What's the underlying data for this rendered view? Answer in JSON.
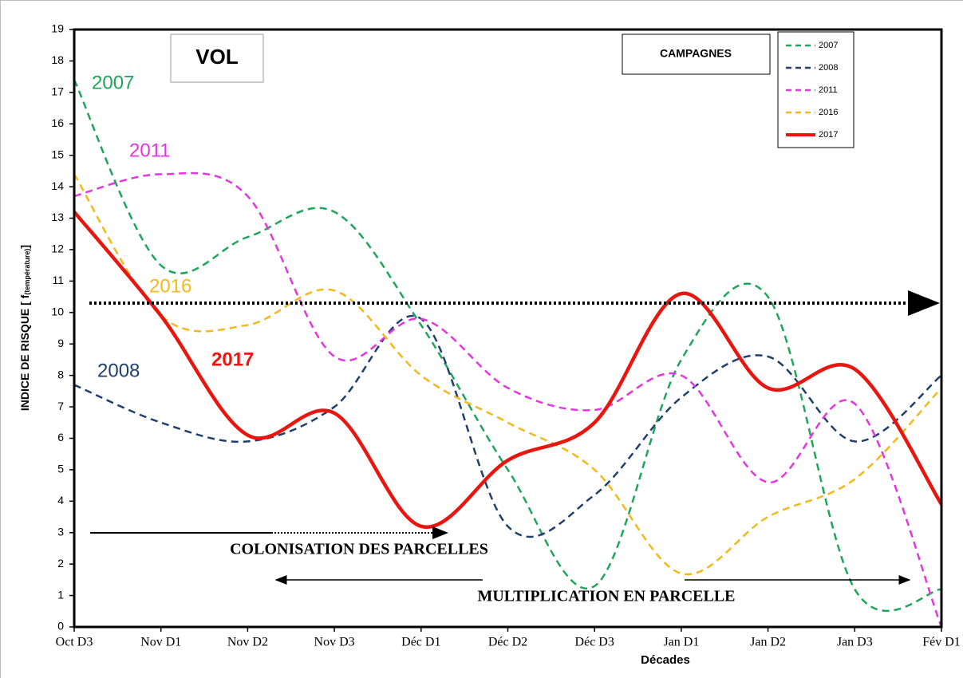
{
  "chart_data": {
    "type": "line",
    "xlabel": "Décades",
    "ylabel": [
      "INDICE DE RISQUE [ f",
      "(température)",
      "]"
    ],
    "categories": [
      "Oct D3",
      "Nov D1",
      "Nov D2",
      "Nov D3",
      "Déc D1",
      "Déc D2",
      "Déc D3",
      "Jan D1",
      "Jan D2",
      "Jan D3",
      "Fév D1"
    ],
    "ylim": [
      0,
      19
    ],
    "yticks": [
      0,
      1,
      2,
      3,
      4,
      5,
      6,
      7,
      8,
      9,
      10,
      11,
      12,
      13,
      14,
      15,
      16,
      17,
      18,
      19
    ],
    "legend_title": "CAMPAGNES",
    "legend": "upper right",
    "series": [
      {
        "name": "2007",
        "color": "#1fa55a",
        "dashed": true,
        "values": [
          17.4,
          11.5,
          12.4,
          13.2,
          9.6,
          5.0,
          1.3,
          8.5,
          10.5,
          1.2,
          1.2
        ]
      },
      {
        "name": "2008",
        "color": "#1f3f6e",
        "dashed": true,
        "values": [
          7.7,
          6.5,
          5.9,
          7.0,
          9.8,
          3.2,
          4.2,
          7.3,
          8.6,
          5.9,
          8.0
        ]
      },
      {
        "name": "2011",
        "color": "#e535e0",
        "dashed": true,
        "values": [
          13.7,
          14.4,
          13.7,
          8.6,
          9.8,
          7.6,
          6.9,
          8.0,
          4.6,
          7.1,
          0
        ]
      },
      {
        "name": "2016",
        "color": "#f2b81c",
        "dashed": true,
        "values": [
          14.4,
          9.9,
          9.6,
          10.7,
          8.0,
          6.5,
          5.0,
          1.7,
          3.5,
          4.7,
          7.6
        ]
      },
      {
        "name": "2017",
        "color": "#e8160f",
        "dashed": false,
        "values": [
          13.2,
          9.9,
          6.1,
          6.8,
          3.2,
          5.3,
          6.5,
          10.6,
          7.6,
          8.2,
          3.9
        ]
      }
    ],
    "annotations": {
      "phase": "VOL",
      "colonisation": "COLONISATION DES PARCELLES",
      "multiplication": "MULTIPLICATION EN PARCELLE",
      "label_2007": "2007",
      "label_2011": "2011",
      "label_2016": "2016",
      "label_2017": "2017",
      "label_2008": "2008"
    }
  }
}
